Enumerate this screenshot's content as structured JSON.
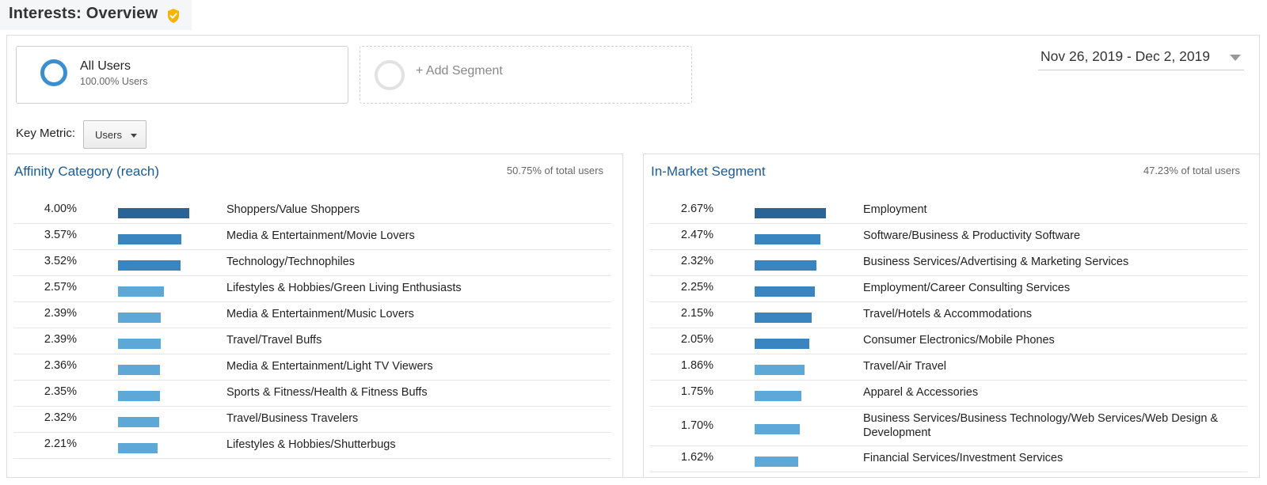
{
  "header": {
    "title": "Interests: Overview",
    "badge_icon": "verified-shield-icon"
  },
  "segments": {
    "primary": {
      "name": "All Users",
      "sub": "100.00% Users",
      "color": "#3b8fd0"
    },
    "add_label": "+ Add Segment"
  },
  "date_range": "Nov 26, 2019 - Dec 2, 2019",
  "key_metric": {
    "label": "Key Metric:",
    "value": "Users"
  },
  "colors": {
    "bar_dark": "#2a6496",
    "bar_mid": "#3a85c0",
    "bar_light": "#5da8d6",
    "link": "#1a5a96"
  },
  "affinity": {
    "title": "Affinity Category (reach)",
    "total": "50.75% of total users",
    "max_value": 4.0,
    "rows": [
      {
        "pct": "4.00%",
        "value": 4.0,
        "label": "Shoppers/Value Shoppers"
      },
      {
        "pct": "3.57%",
        "value": 3.57,
        "label": "Media & Entertainment/Movie Lovers"
      },
      {
        "pct": "3.52%",
        "value": 3.52,
        "label": "Technology/Technophiles"
      },
      {
        "pct": "2.57%",
        "value": 2.57,
        "label": "Lifestyles & Hobbies/Green Living Enthusiasts"
      },
      {
        "pct": "2.39%",
        "value": 2.39,
        "label": "Media & Entertainment/Music Lovers"
      },
      {
        "pct": "2.39%",
        "value": 2.39,
        "label": "Travel/Travel Buffs"
      },
      {
        "pct": "2.36%",
        "value": 2.36,
        "label": "Media & Entertainment/Light TV Viewers"
      },
      {
        "pct": "2.35%",
        "value": 2.35,
        "label": "Sports & Fitness/Health & Fitness Buffs"
      },
      {
        "pct": "2.32%",
        "value": 2.32,
        "label": "Travel/Business Travelers"
      },
      {
        "pct": "2.21%",
        "value": 2.21,
        "label": "Lifestyles & Hobbies/Shutterbugs"
      }
    ]
  },
  "in_market": {
    "title": "In-Market Segment",
    "total": "47.23% of total users",
    "max_value": 2.67,
    "rows": [
      {
        "pct": "2.67%",
        "value": 2.67,
        "label": "Employment"
      },
      {
        "pct": "2.47%",
        "value": 2.47,
        "label": "Software/Business & Productivity Software"
      },
      {
        "pct": "2.32%",
        "value": 2.32,
        "label": "Business Services/Advertising & Marketing Services"
      },
      {
        "pct": "2.25%",
        "value": 2.25,
        "label": "Employment/Career Consulting Services"
      },
      {
        "pct": "2.15%",
        "value": 2.15,
        "label": "Travel/Hotels & Accommodations"
      },
      {
        "pct": "2.05%",
        "value": 2.05,
        "label": "Consumer Electronics/Mobile Phones"
      },
      {
        "pct": "1.86%",
        "value": 1.86,
        "label": "Travel/Air Travel"
      },
      {
        "pct": "1.75%",
        "value": 1.75,
        "label": "Apparel & Accessories"
      },
      {
        "pct": "1.70%",
        "value": 1.7,
        "label": "Business Services/Business Technology/Web Services/Web Design & Development"
      },
      {
        "pct": "1.62%",
        "value": 1.62,
        "label": "Financial Services/Investment Services"
      }
    ]
  }
}
